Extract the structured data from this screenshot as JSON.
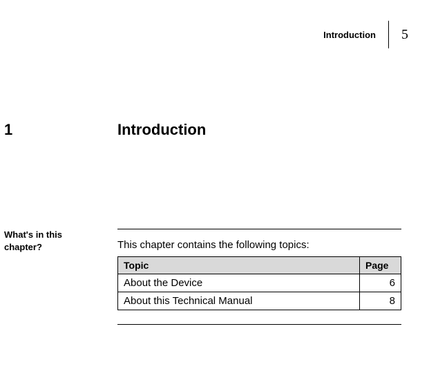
{
  "header": {
    "running_title": "Introduction",
    "page_number": "5"
  },
  "chapter": {
    "number": "1",
    "title": "Introduction"
  },
  "section": {
    "label": "What's in this chapter?",
    "intro": "This chapter contains the following topics:"
  },
  "table": {
    "columns": [
      "Topic",
      "Page"
    ],
    "rows": [
      [
        "About the Device",
        "6"
      ],
      [
        "About this Technical Manual",
        "8"
      ]
    ],
    "header_bg": "#d9d9d9",
    "border_color": "#000000"
  }
}
